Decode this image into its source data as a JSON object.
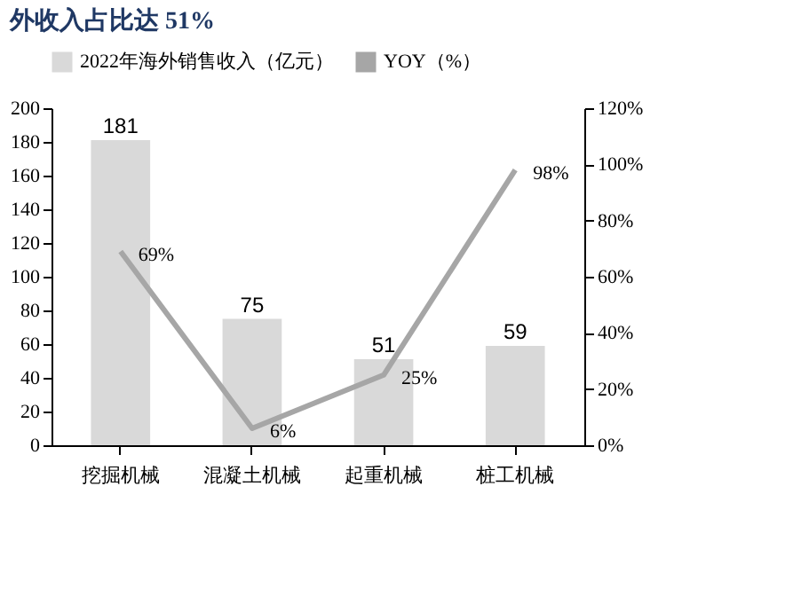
{
  "chart_data": {
    "type": "bar",
    "title": "外收入占比达 51%",
    "categories": [
      "挖掘机械",
      "混凝土机械",
      "起重机械",
      "桩工机械"
    ],
    "series": [
      {
        "name": "2022年海外销售收入（亿元）",
        "color": "#d9d9d9",
        "values": [
          181,
          75,
          51,
          59
        ],
        "value_labels": [
          "181",
          "75",
          "51",
          "59"
        ]
      },
      {
        "name": "YOY（%）",
        "type": "line",
        "axis": "y2",
        "color": "#a6a6a6",
        "values": [
          69,
          6,
          25,
          98
        ],
        "value_labels": [
          "69%",
          "6%",
          "25%",
          "98%"
        ]
      }
    ],
    "ylim": [
      0,
      200
    ],
    "yticks": [
      0,
      20,
      40,
      60,
      80,
      100,
      120,
      140,
      160,
      180,
      200
    ],
    "y2lim": [
      0,
      120
    ],
    "y2ticks": [
      {
        "value": 0,
        "label": "0%"
      },
      {
        "value": 20,
        "label": "20%"
      },
      {
        "value": 40,
        "label": "40%"
      },
      {
        "value": 60,
        "label": "60%"
      },
      {
        "value": 80,
        "label": "80%"
      },
      {
        "value": 100,
        "label": "100%"
      },
      {
        "value": 120,
        "label": "120%"
      }
    ],
    "legend": "top",
    "grid": false
  }
}
